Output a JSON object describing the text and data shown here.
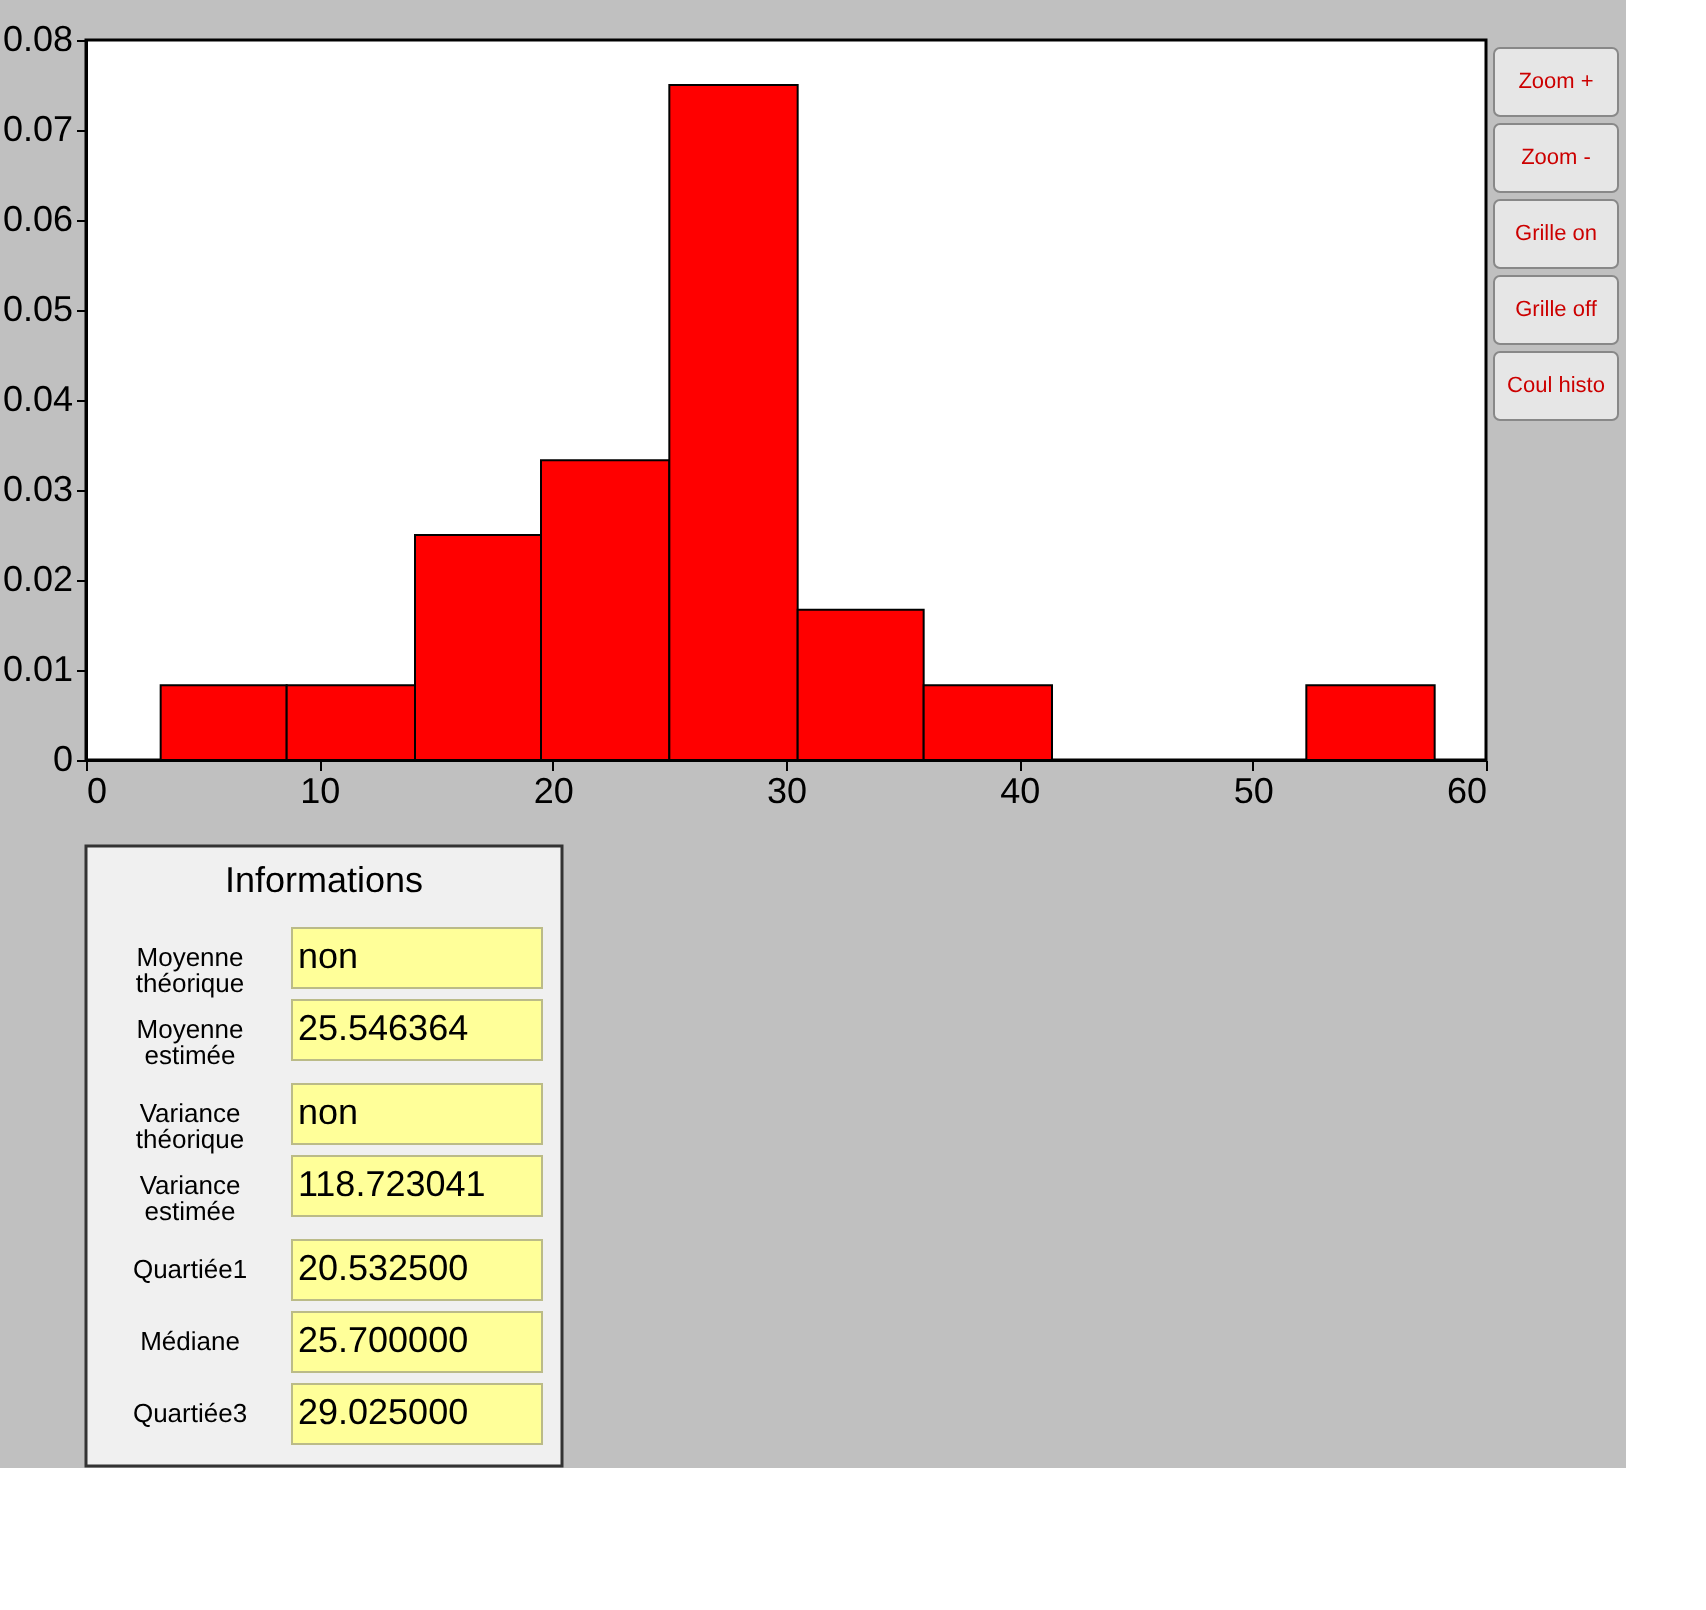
{
  "chart_data": [
    {
      "type": "histogram",
      "bins": [
        3.2,
        8.6,
        14.1,
        19.5,
        25.0,
        30.5,
        35.9,
        41.4,
        52.3,
        57.8
      ],
      "values": [
        0.0083,
        0.0083,
        0.025,
        0.0333,
        0.075,
        0.0167,
        0.0083,
        0,
        0.0083
      ],
      "color": "#ff0000",
      "xlim": [
        0,
        60
      ],
      "xticks": [
        0,
        10,
        20,
        30,
        40,
        50,
        60
      ],
      "ylim": [
        0,
        0.08
      ],
      "yticks": [
        {
          "value": 0,
          "label": "0"
        },
        0.01,
        0.02,
        0.03,
        0.04,
        0.05,
        0.06,
        0.07,
        0.08
      ],
      "grid": false,
      "annotations": [
        "Zoom +",
        "Zoom -",
        "Grille on",
        "Grille off",
        "Coul histo"
      ]
    },
    {
      "type": "other",
      "title": "Informations",
      "annotations": [
        "Moyenne théorique",
        "non",
        "Moyenne estimée",
        "25.546364",
        "Variance théorique",
        "non",
        "Variance estimée",
        "118.723041",
        "Quartiée1",
        "20.532500",
        "Médiane",
        "25.700000",
        "Quartiée3",
        "29.025000"
      ]
    }
  ]
}
